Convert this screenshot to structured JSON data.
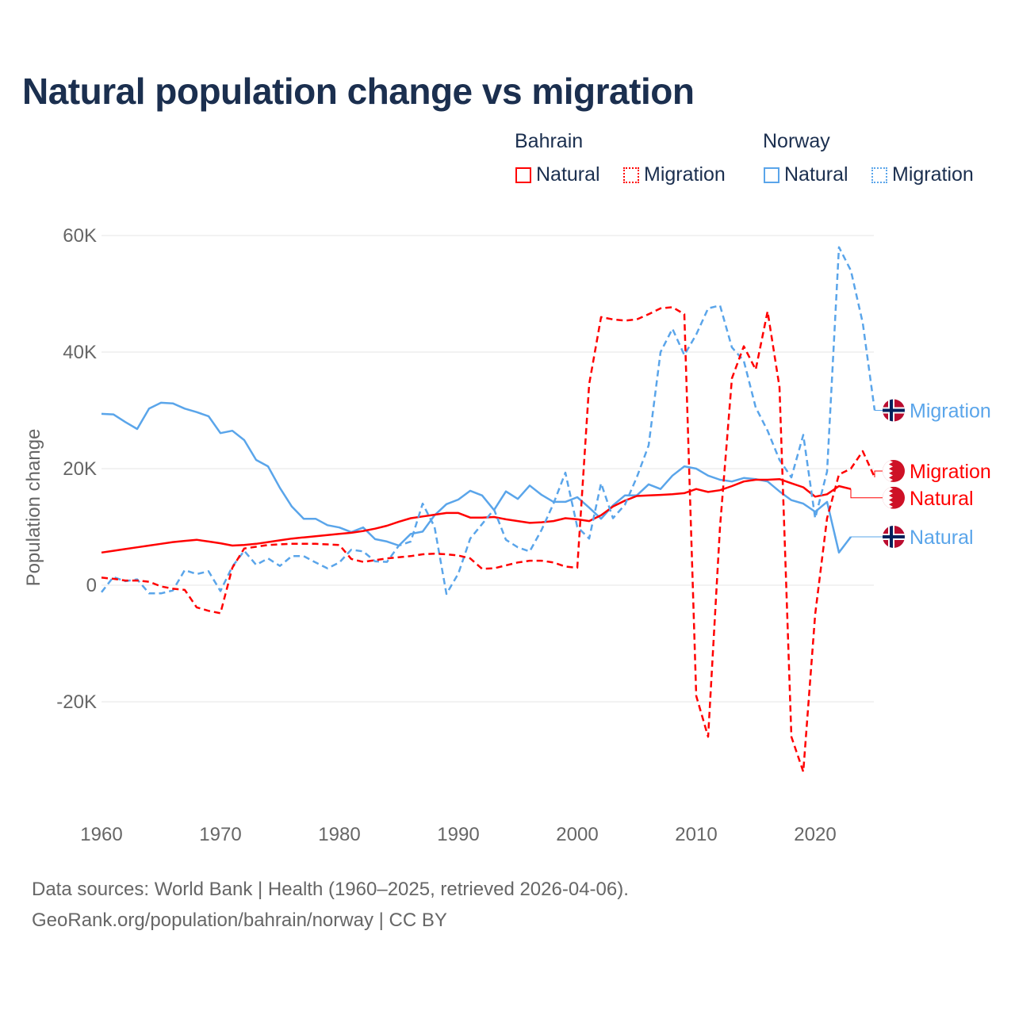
{
  "title": "Natural population change vs migration",
  "legend": {
    "groups": [
      {
        "name": "Bahrain",
        "items": [
          "Natural",
          "Migration"
        ],
        "color": "#ff0000"
      },
      {
        "name": "Norway",
        "items": [
          "Natural",
          "Migration"
        ],
        "color": "#5aa5ea"
      }
    ]
  },
  "footer": {
    "line1": "Data sources: World Bank | Health (1960–2025, retrieved 2026-04-06).",
    "line2": "GeoRank.org/population/bahrain/norway | CC BY"
  },
  "chart_data": {
    "type": "line",
    "title": "Natural population change vs migration",
    "xlabel": "",
    "ylabel": "Population change",
    "xlim": [
      1960,
      2025
    ],
    "ylim": [
      -35000,
      62000
    ],
    "xticks": [
      1960,
      1970,
      1980,
      1990,
      2000,
      2010,
      2020
    ],
    "xtick_labels": [
      "1960",
      "1970",
      "1980",
      "1990",
      "2000",
      "2010",
      "2020"
    ],
    "yticks": [
      -20000,
      0,
      20000,
      40000,
      60000
    ],
    "ytick_labels": [
      "-20K",
      "0",
      "20K",
      "40K",
      "60K"
    ],
    "grid": true,
    "legend_placement": "top-right",
    "series": [
      {
        "name": "Bahrain Natural",
        "label": "Natural",
        "country": "Bahrain",
        "color": "#ff0000",
        "dash": false,
        "start": 1960,
        "values": [
          5600,
          5900,
          6200,
          6500,
          6800,
          7100,
          7400,
          7600,
          7800,
          7500,
          7200,
          6800,
          6900,
          7100,
          7400,
          7700,
          8000,
          8200,
          8400,
          8600,
          8800,
          9000,
          9300,
          9700,
          10200,
          10900,
          11500,
          11800,
          12100,
          12400,
          12400,
          11600,
          11600,
          11700,
          11300,
          11000,
          10700,
          10800,
          11000,
          11500,
          11300,
          11000,
          12000,
          13500,
          14500,
          15300,
          15400,
          15500,
          15600,
          15800,
          16500,
          16000,
          16300,
          17000,
          17800,
          18100,
          18100,
          18200,
          17500,
          16800,
          15200,
          15600,
          17000,
          16500
        ]
      },
      {
        "name": "Bahrain Migration",
        "label": "Migration",
        "country": "Bahrain",
        "color": "#ff0000",
        "dash": true,
        "start": 1960,
        "values": [
          1300,
          1100,
          800,
          800,
          600,
          -200,
          -600,
          -800,
          -3800,
          -4400,
          -4800,
          3000,
          6300,
          6600,
          6900,
          7000,
          7100,
          7100,
          7100,
          7000,
          6900,
          4500,
          4000,
          4300,
          4600,
          4800,
          5000,
          5300,
          5400,
          5300,
          5100,
          4600,
          2800,
          2900,
          3400,
          3900,
          4200,
          4200,
          3900,
          3200,
          3000,
          34500,
          46000,
          45600,
          45400,
          45600,
          46500,
          47500,
          47700,
          46500,
          -19000,
          -26000,
          10000,
          35500,
          41000,
          37000,
          47000,
          34000,
          -26000,
          -32000,
          -5000,
          11500,
          19000,
          20000,
          23000,
          18500
        ]
      },
      {
        "name": "Norway Natural",
        "label": "Natural",
        "country": "Norway",
        "color": "#5aa5ea",
        "dash": false,
        "start": 1960,
        "values": [
          29400,
          29300,
          28000,
          26800,
          30300,
          31300,
          31200,
          30300,
          29700,
          29000,
          26100,
          26500,
          24900,
          21500,
          20400,
          16700,
          13500,
          11400,
          11400,
          10300,
          9900,
          9100,
          9900,
          7900,
          7500,
          6800,
          8800,
          9200,
          12000,
          13900,
          14700,
          16200,
          15400,
          12900,
          16100,
          14800,
          17100,
          15500,
          14300,
          14300,
          15100,
          13300,
          11400,
          13700,
          15400,
          15400,
          17300,
          16500,
          18800,
          20400,
          20000,
          18800,
          18100,
          17800,
          18400,
          18200,
          17800,
          16100,
          14600,
          14000,
          12600,
          14300,
          5600,
          8300
        ]
      },
      {
        "name": "Norway Migration",
        "label": "Migration",
        "country": "Norway",
        "color": "#5aa5ea",
        "dash": true,
        "start": 1960,
        "values": [
          -1200,
          1400,
          700,
          1000,
          -1400,
          -1400,
          -900,
          2600,
          1900,
          2400,
          -1000,
          3200,
          5900,
          3500,
          4600,
          3300,
          5000,
          5000,
          3900,
          2900,
          3900,
          6100,
          5800,
          4100,
          4000,
          6800,
          7500,
          14000,
          10000,
          -1500,
          2000,
          8000,
          10500,
          13000,
          7800,
          6500,
          5800,
          9500,
          14000,
          19300,
          10000,
          8000,
          17500,
          11500,
          13800,
          18500,
          24000,
          40000,
          44000,
          39500,
          43000,
          47500,
          48000,
          40800,
          38500,
          30500,
          26500,
          21500,
          18500,
          25800,
          11500,
          19500,
          58000,
          54000,
          45000,
          30000
        ]
      }
    ],
    "end_labels": [
      {
        "series": "Norway Migration",
        "text": "Migration",
        "flag": "norway-flag-icon",
        "label_value": 30000
      },
      {
        "series": "Bahrain Migration",
        "text": "Migration",
        "flag": "bahrain-flag-icon",
        "label_value": 19600
      },
      {
        "series": "Bahrain Natural",
        "text": "Natural",
        "flag": "bahrain-flag-icon",
        "label_value": 15000
      },
      {
        "series": "Norway Natural",
        "text": "Natural",
        "flag": "norway-flag-icon",
        "label_value": 8300
      }
    ]
  }
}
